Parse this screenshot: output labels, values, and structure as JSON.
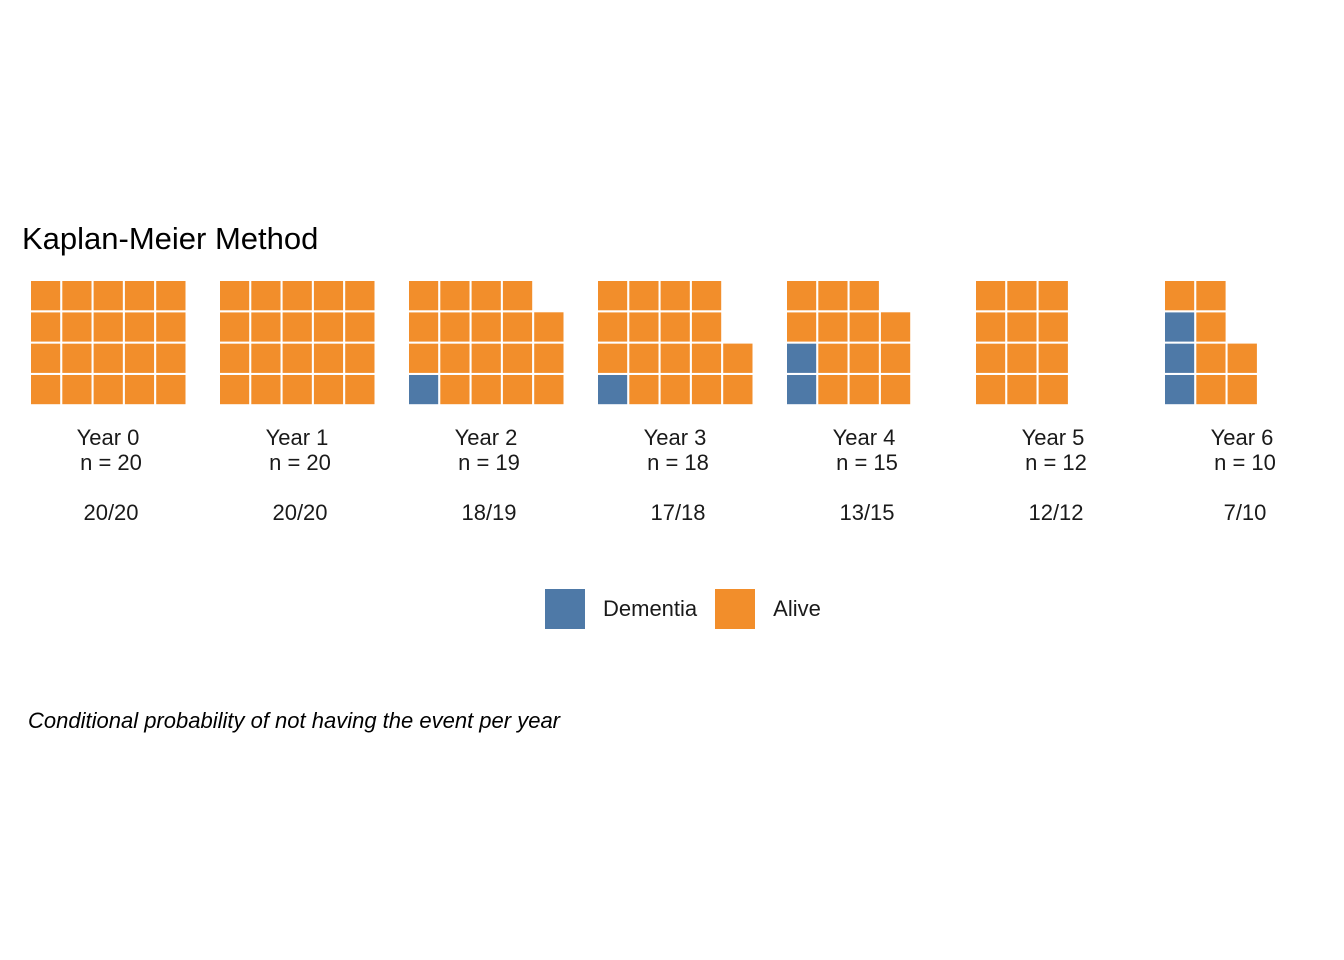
{
  "chart_data": {
    "type": "waffle",
    "title": "Kaplan-Meier Method",
    "caption": "Conditional probability of not having the event per year",
    "colors": {
      "Dementia": "#4e79a7",
      "Alive": "#f28e2b"
    },
    "legend": {
      "position": "bottom",
      "entries": [
        "Dementia",
        "Alive"
      ]
    },
    "panels": [
      {
        "label": "Year 0",
        "n_label": "n = 20",
        "ratio": "20/20",
        "n": 20,
        "dementia": 0,
        "alive": 20
      },
      {
        "label": "Year 1",
        "n_label": "n = 20",
        "ratio": "20/20",
        "n": 20,
        "dementia": 0,
        "alive": 20
      },
      {
        "label": "Year 2",
        "n_label": "n = 19",
        "ratio": "18/19",
        "n": 19,
        "dementia": 1,
        "alive": 18
      },
      {
        "label": "Year 3",
        "n_label": "n = 18",
        "ratio": "17/18",
        "n": 18,
        "dementia": 1,
        "alive": 17
      },
      {
        "label": "Year 4",
        "n_label": "n = 15",
        "ratio": "13/15",
        "n": 15,
        "dementia": 2,
        "alive": 13
      },
      {
        "label": "Year 5",
        "n_label": "n = 12",
        "ratio": "12/12",
        "n": 12,
        "dementia": 0,
        "alive": 12
      },
      {
        "label": "Year 6",
        "n_label": "n = 10",
        "ratio": "7/10",
        "n": 10,
        "dementia": 3,
        "alive": 7
      }
    ]
  }
}
